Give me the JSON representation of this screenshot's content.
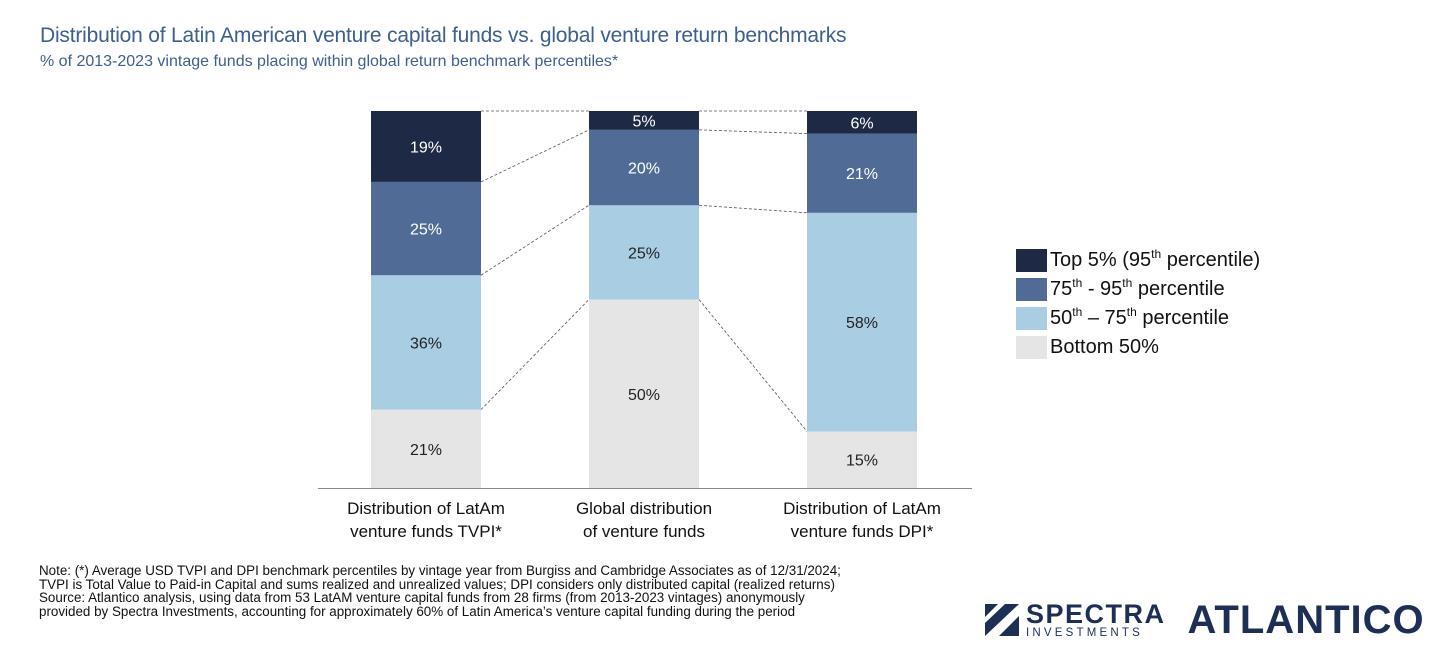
{
  "title": "Distribution of Latin American venture capital funds vs. global venture return benchmarks",
  "subtitle": "% of 2013-2023 vintage funds placing within global return benchmark percentiles*",
  "colors": {
    "top5": "#1e2a45",
    "p75_95": "#4f6b96",
    "p50_75": "#a9cde3",
    "bottom50": "#e5e5e5",
    "title": "#3d5f8e",
    "logo": "#1d2f55"
  },
  "chart_data": {
    "type": "bar",
    "stacked": true,
    "normalized_percent": true,
    "categories": [
      [
        "Distribution of LatAm",
        "venture funds TVPI*"
      ],
      [
        "Global distribution",
        "of venture funds"
      ],
      [
        "Distribution of LatAm",
        "venture funds DPI*"
      ]
    ],
    "series": [
      {
        "name": "Bottom 50%",
        "color": "#e5e5e5",
        "values": [
          21,
          50,
          15
        ],
        "labels": [
          "21%",
          "50%",
          "15%"
        ]
      },
      {
        "name": "50th – 75th percentile",
        "color": "#a9cde3",
        "values": [
          36,
          25,
          58
        ],
        "labels": [
          "36%",
          "25%",
          "58%"
        ]
      },
      {
        "name": "75th - 95th percentile",
        "color": "#4f6b96",
        "values": [
          25,
          20,
          21
        ],
        "labels": [
          "25%",
          "20%",
          "21%"
        ]
      },
      {
        "name": "Top 5% (95th percentile)",
        "color": "#1e2a45",
        "values": [
          19,
          5,
          6
        ],
        "labels": [
          "19%",
          "5%",
          "6%"
        ]
      }
    ],
    "legend_position": "right",
    "connector_lines": "dashed",
    "grid": false
  },
  "legend": [
    {
      "pre": "Top 5% (95",
      "sup": "th",
      "post": " percentile)",
      "color": "#1e2a45"
    },
    {
      "pre": "75",
      "sup": "th",
      "mid": " - 95",
      "sup2": "th",
      "post": " percentile",
      "color": "#4f6b96"
    },
    {
      "pre": "50",
      "sup": "th",
      "mid": " – 75",
      "sup2": "th",
      "post": " percentile",
      "color": "#a9cde3"
    },
    {
      "pre": "Bottom 50%",
      "color": "#e5e5e5"
    }
  ],
  "note": [
    "Note: (*) Average USD TVPI and DPI benchmark percentiles by vintage year from Burgiss and Cambridge Associates as of 12/31/2024;",
    "TVPI is Total Value to Paid-in Capital and sums realized and unrealized values; DPI considers only distributed capital (realized returns)",
    "Source: Atlantico analysis, using data from 53 LatAM venture capital funds from 28 firms (from 2013-2023 vintages) anonymously",
    "provided by Spectra Investments, accounting for approximately 60% of Latin America’s venture capital funding during the period"
  ],
  "logos": {
    "spectra_name": "SPECTRA",
    "spectra_sub": "INVESTMENTS",
    "atlantico": "ATLANTICO"
  }
}
